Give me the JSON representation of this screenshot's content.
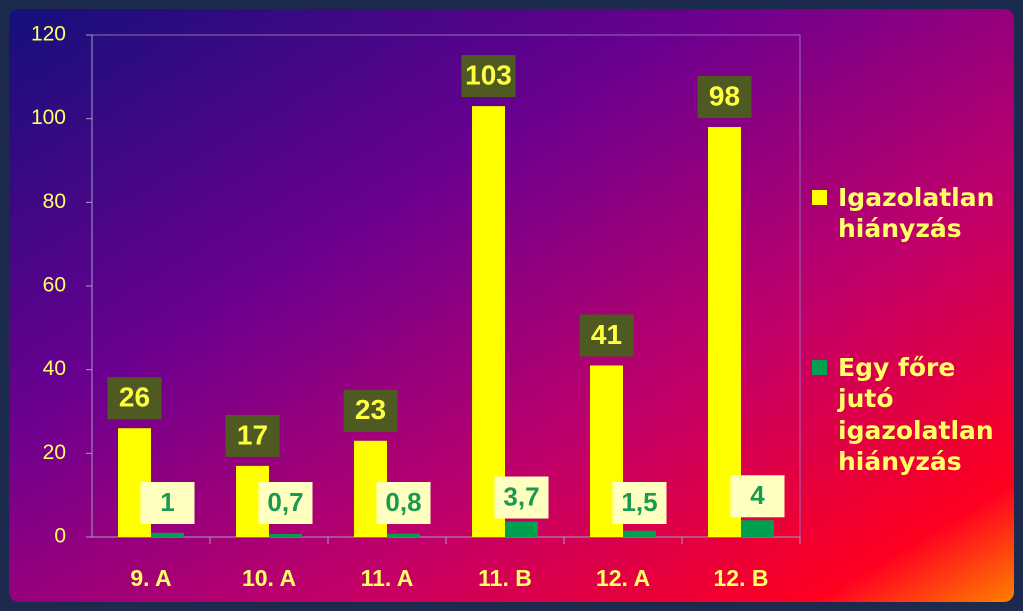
{
  "chart_data": {
    "type": "bar",
    "categories": [
      "9. A",
      "10. A",
      "11. A",
      "11. B",
      "12. A",
      "12. B"
    ],
    "series": [
      {
        "name": "Igazolatlan hiányzás",
        "color": "#ffff00",
        "values": [
          26,
          17,
          23,
          103,
          41,
          98
        ]
      },
      {
        "name": "Egy főre jutó igazolatlan hiányzás",
        "color": "#00a050",
        "values": [
          1,
          0.7,
          0.8,
          3.7,
          1.5,
          4
        ],
        "value_labels": [
          "1",
          "0,7",
          "0,8",
          "3,7",
          "1,5",
          "4"
        ]
      }
    ],
    "ylim": [
      0,
      120
    ],
    "yticks": [
      0,
      20,
      40,
      60,
      80,
      100,
      120
    ],
    "grid": false,
    "legend": "right"
  }
}
